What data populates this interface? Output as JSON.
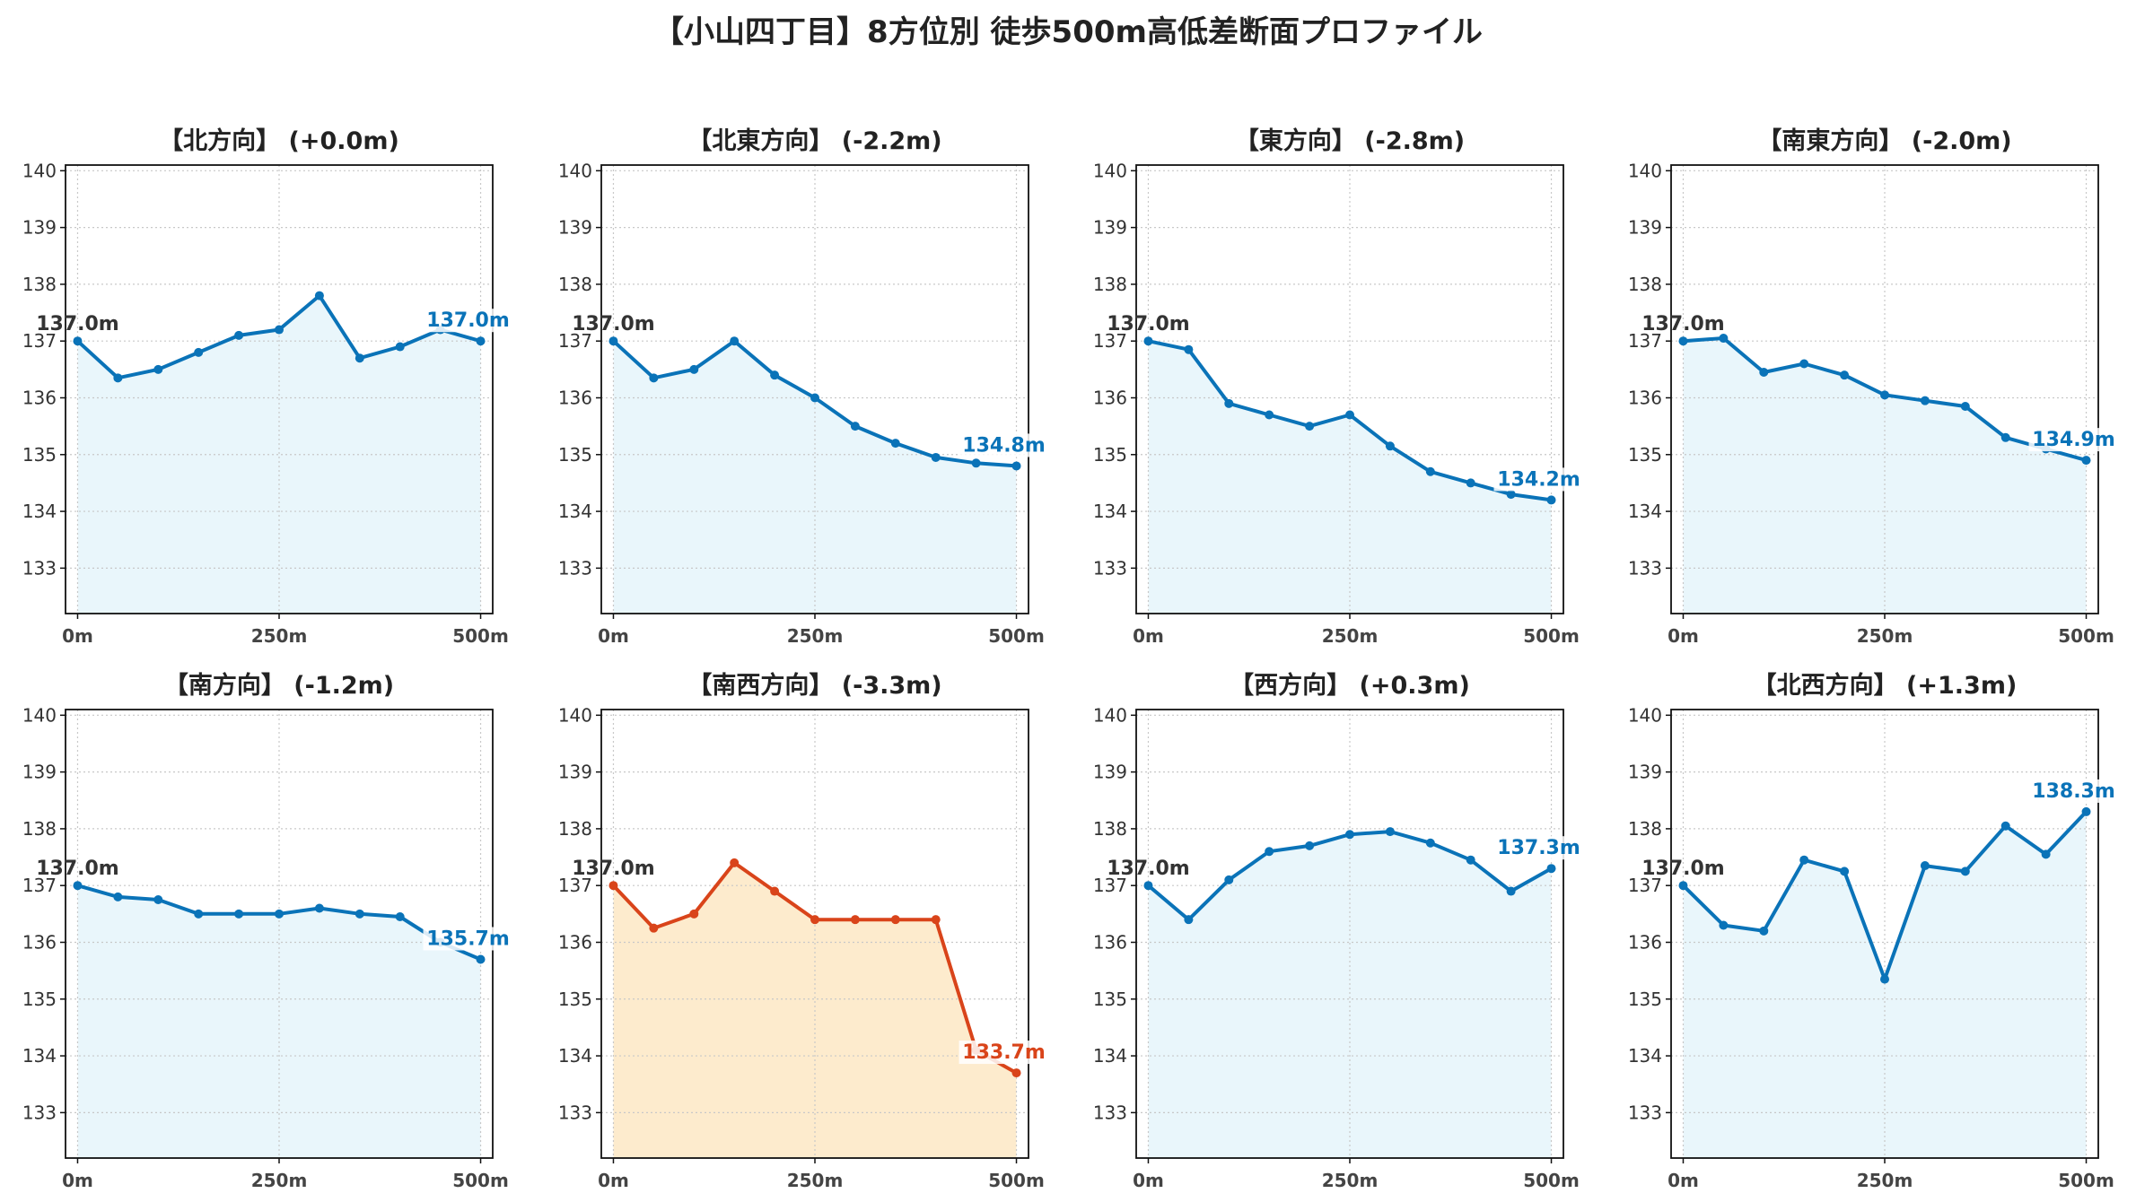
{
  "title": "【小山四丁目】8方位別 徒歩500m高低差断面プロファイル",
  "colors": {
    "normal_line": "#0A73B8",
    "normal_fill": "#E9F6FB",
    "highlight_line": "#D9441A",
    "highlight_fill": "#FDEBCD",
    "start_label": "#333333"
  },
  "chart_data": [
    {
      "type": "area",
      "title": "【北方向】 (+0.0m)",
      "x": [
        0,
        50,
        100,
        150,
        200,
        250,
        300,
        350,
        400,
        450,
        500
      ],
      "values": [
        137.0,
        136.35,
        136.5,
        136.8,
        137.1,
        137.2,
        137.8,
        136.7,
        136.9,
        137.2,
        137.0
      ],
      "x_ticks": [
        "0m",
        "250m",
        "500m"
      ],
      "y_ticks": [
        "133",
        "134",
        "135",
        "136",
        "137",
        "138",
        "139",
        "140"
      ],
      "ylim": [
        132.2,
        140.1
      ],
      "xlim": [
        -15,
        515
      ],
      "start_label": "137.0m",
      "end_label": "137.0m",
      "highlight": false,
      "grid": true
    },
    {
      "type": "area",
      "title": "【北東方向】 (-2.2m)",
      "x": [
        0,
        50,
        100,
        150,
        200,
        250,
        300,
        350,
        400,
        450,
        500
      ],
      "values": [
        137.0,
        136.35,
        136.5,
        137.0,
        136.4,
        136.0,
        135.5,
        135.2,
        134.95,
        134.85,
        134.8
      ],
      "x_ticks": [
        "0m",
        "250m",
        "500m"
      ],
      "y_ticks": [
        "133",
        "134",
        "135",
        "136",
        "137",
        "138",
        "139",
        "140"
      ],
      "ylim": [
        132.2,
        140.1
      ],
      "xlim": [
        -15,
        515
      ],
      "start_label": "137.0m",
      "end_label": "134.8m",
      "highlight": false,
      "grid": true
    },
    {
      "type": "area",
      "title": "【東方向】 (-2.8m)",
      "x": [
        0,
        50,
        100,
        150,
        200,
        250,
        300,
        350,
        400,
        450,
        500
      ],
      "values": [
        137.0,
        136.85,
        135.9,
        135.7,
        135.5,
        135.7,
        135.15,
        134.7,
        134.5,
        134.3,
        134.2
      ],
      "x_ticks": [
        "0m",
        "250m",
        "500m"
      ],
      "y_ticks": [
        "133",
        "134",
        "135",
        "136",
        "137",
        "138",
        "139",
        "140"
      ],
      "ylim": [
        132.2,
        140.1
      ],
      "xlim": [
        -15,
        515
      ],
      "start_label": "137.0m",
      "end_label": "134.2m",
      "highlight": false,
      "grid": true
    },
    {
      "type": "area",
      "title": "【南東方向】 (-2.0m)",
      "x": [
        0,
        50,
        100,
        150,
        200,
        250,
        300,
        350,
        400,
        450,
        500
      ],
      "values": [
        137.0,
        137.05,
        136.45,
        136.6,
        136.4,
        136.05,
        135.95,
        135.85,
        135.3,
        135.1,
        134.9
      ],
      "x_ticks": [
        "0m",
        "250m",
        "500m"
      ],
      "y_ticks": [
        "133",
        "134",
        "135",
        "136",
        "137",
        "138",
        "139",
        "140"
      ],
      "ylim": [
        132.2,
        140.1
      ],
      "xlim": [
        -15,
        515
      ],
      "start_label": "137.0m",
      "end_label": "134.9m",
      "highlight": false,
      "grid": true
    },
    {
      "type": "area",
      "title": "【南方向】 (-1.2m)",
      "x": [
        0,
        50,
        100,
        150,
        200,
        250,
        300,
        350,
        400,
        450,
        500
      ],
      "values": [
        137.0,
        136.8,
        136.75,
        136.5,
        136.5,
        136.5,
        136.6,
        136.5,
        136.45,
        136.0,
        135.7
      ],
      "x_ticks": [
        "0m",
        "250m",
        "500m"
      ],
      "y_ticks": [
        "133",
        "134",
        "135",
        "136",
        "137",
        "138",
        "139",
        "140"
      ],
      "ylim": [
        132.2,
        140.1
      ],
      "xlim": [
        -15,
        515
      ],
      "start_label": "137.0m",
      "end_label": "135.7m",
      "highlight": false,
      "grid": true
    },
    {
      "type": "area",
      "title": "【南西方向】 (-3.3m)",
      "x": [
        0,
        50,
        100,
        150,
        200,
        250,
        300,
        350,
        400,
        450,
        500
      ],
      "values": [
        137.0,
        136.25,
        136.5,
        137.4,
        136.9,
        136.4,
        136.4,
        136.4,
        136.4,
        134.1,
        133.7
      ],
      "x_ticks": [
        "0m",
        "250m",
        "500m"
      ],
      "y_ticks": [
        "133",
        "134",
        "135",
        "136",
        "137",
        "138",
        "139",
        "140"
      ],
      "ylim": [
        132.2,
        140.1
      ],
      "xlim": [
        -15,
        515
      ],
      "start_label": "137.0m",
      "end_label": "133.7m",
      "highlight": true,
      "grid": true
    },
    {
      "type": "area",
      "title": "【西方向】 (+0.3m)",
      "x": [
        0,
        50,
        100,
        150,
        200,
        250,
        300,
        350,
        400,
        450,
        500
      ],
      "values": [
        137.0,
        136.4,
        137.1,
        137.6,
        137.7,
        137.9,
        137.95,
        137.75,
        137.45,
        136.9,
        137.3
      ],
      "x_ticks": [
        "0m",
        "250m",
        "500m"
      ],
      "y_ticks": [
        "133",
        "134",
        "135",
        "136",
        "137",
        "138",
        "139",
        "140"
      ],
      "ylim": [
        132.2,
        140.1
      ],
      "xlim": [
        -15,
        515
      ],
      "start_label": "137.0m",
      "end_label": "137.3m",
      "highlight": false,
      "grid": true
    },
    {
      "type": "area",
      "title": "【北西方向】 (+1.3m)",
      "x": [
        0,
        50,
        100,
        150,
        200,
        250,
        300,
        350,
        400,
        450,
        500
      ],
      "values": [
        137.0,
        136.3,
        136.2,
        137.45,
        137.25,
        135.35,
        137.35,
        137.25,
        138.05,
        137.55,
        138.3
      ],
      "x_ticks": [
        "0m",
        "250m",
        "500m"
      ],
      "y_ticks": [
        "133",
        "134",
        "135",
        "136",
        "137",
        "138",
        "139",
        "140"
      ],
      "ylim": [
        132.2,
        140.1
      ],
      "xlim": [
        -15,
        515
      ],
      "start_label": "137.0m",
      "end_label": "138.3m",
      "highlight": false,
      "grid": true
    }
  ]
}
